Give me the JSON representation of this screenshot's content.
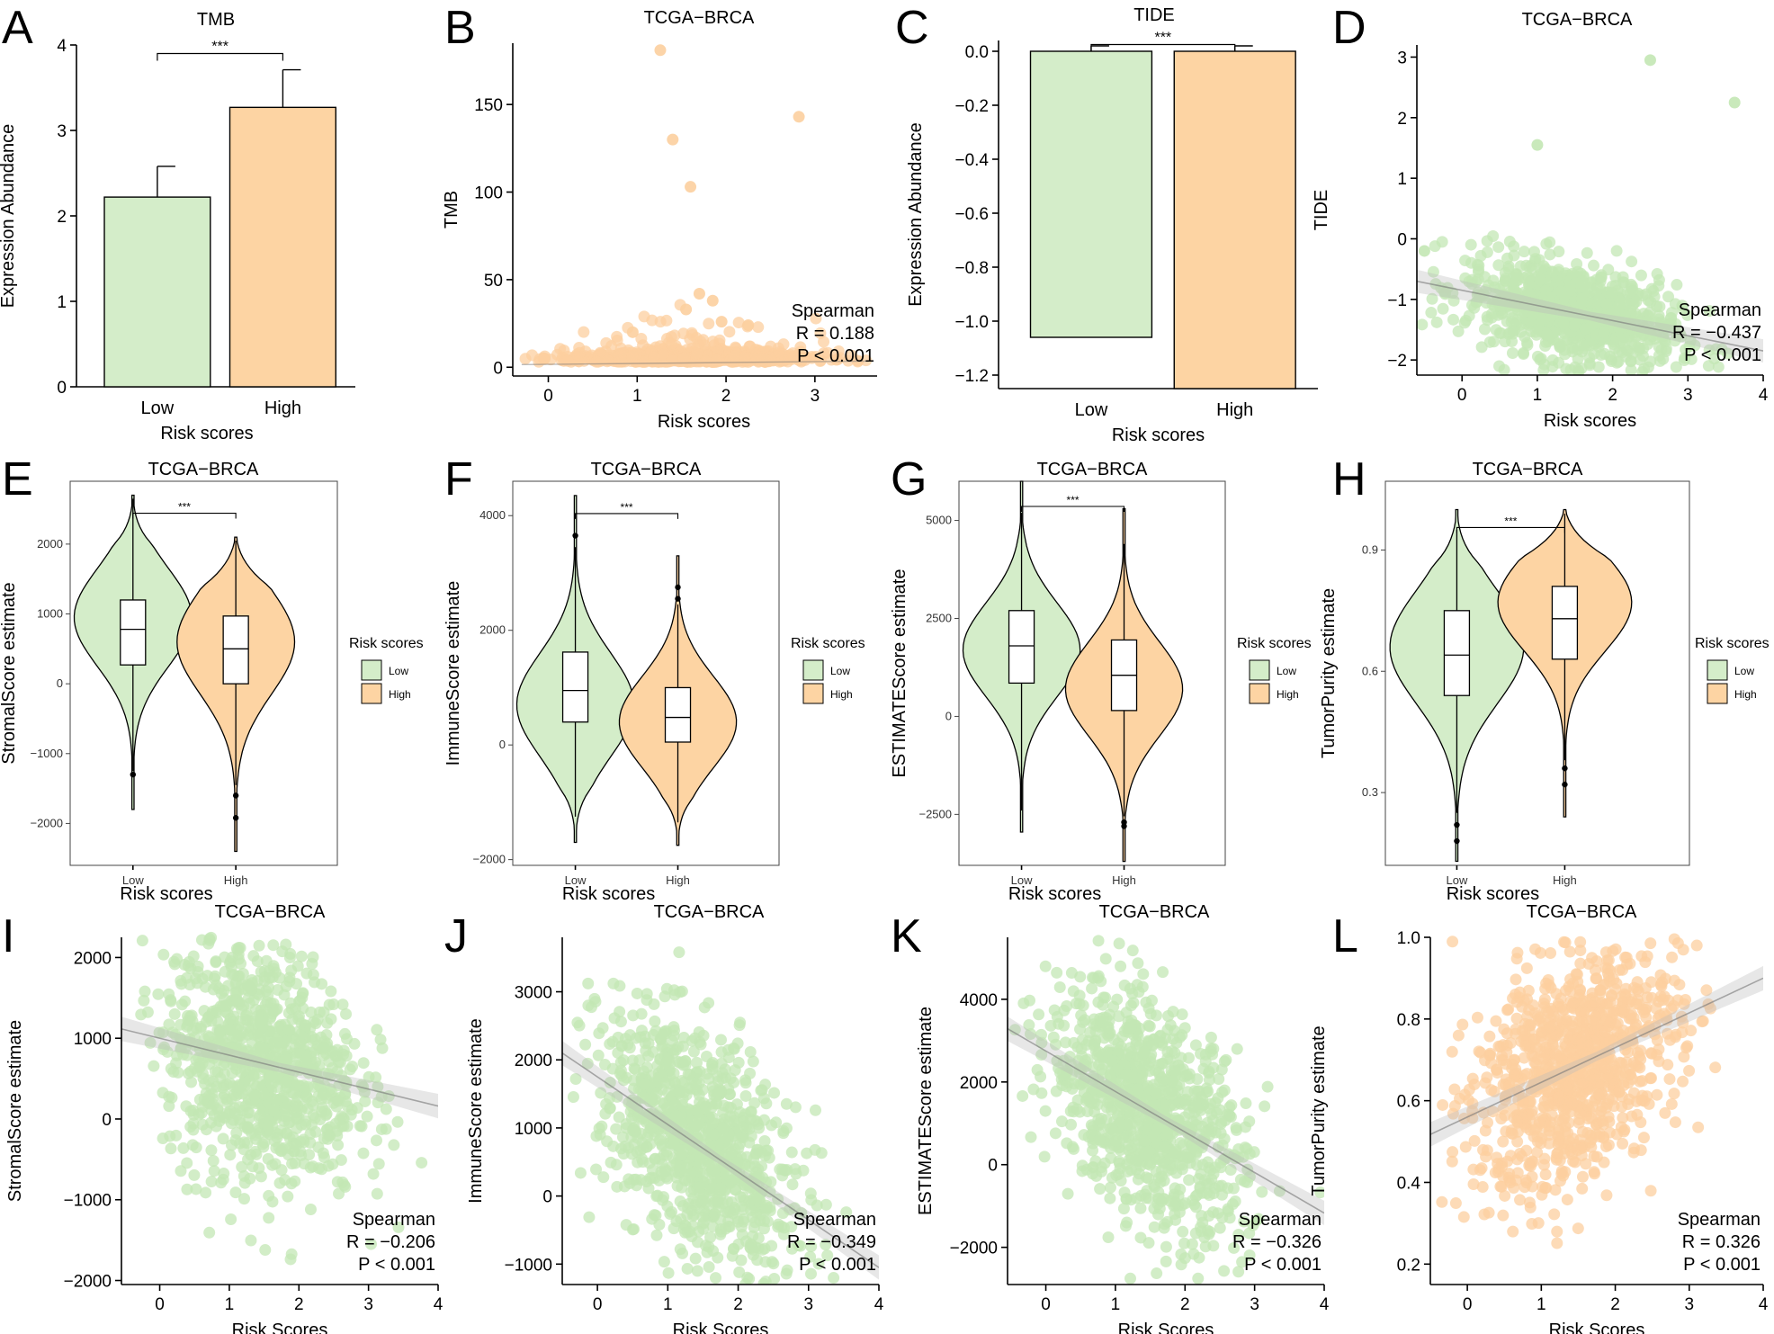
{
  "colors": {
    "low": "#d4edc9",
    "high": "#fdd4a3",
    "low_point": "#c3e7b4",
    "high_point": "#fccf9f",
    "line": "#777777",
    "band": "#bbbbbb"
  },
  "chart_data": [
    {
      "id": "A",
      "panel_label": "A",
      "type": "bar",
      "title": "TMB",
      "xlabel": "Risk scores",
      "ylabel": "Expression Abundance",
      "categories": [
        "Low",
        "High"
      ],
      "values": [
        2.22,
        3.27
      ],
      "errors": [
        0.36,
        0.44
      ],
      "ylim": [
        0,
        4
      ],
      "yticks": [
        0,
        1,
        2,
        3,
        4
      ],
      "yticklabels": [
        "0",
        "1",
        "2",
        "3",
        "4"
      ],
      "significance": "***"
    },
    {
      "id": "B",
      "panel_label": "B",
      "type": "scatter",
      "title": "TCGA−BRCA",
      "xlabel": "Risk scores",
      "ylabel": "TMB",
      "xlim": [
        -0.4,
        3.7
      ],
      "ylim": [
        -5,
        185
      ],
      "xticks": [
        0,
        1,
        2,
        3
      ],
      "xticklabels": [
        "0",
        "1",
        "2",
        "3"
      ],
      "yticks": [
        0,
        50,
        100,
        150
      ],
      "yticklabels": [
        "0",
        "50",
        "100",
        "150"
      ],
      "stats": {
        "method": "Spearman",
        "r_label": "R = 0.188",
        "p_label": "P < 0.001"
      },
      "highlight_points": [
        [
          1.26,
          181
        ],
        [
          2.82,
          143
        ],
        [
          1.4,
          130
        ],
        [
          1.6,
          103
        ],
        [
          1.7,
          42
        ],
        [
          1.85,
          38
        ],
        [
          1.55,
          33
        ],
        [
          1.95,
          26
        ],
        [
          2.25,
          24
        ],
        [
          0.95,
          20
        ]
      ],
      "cloud": {
        "n": 700,
        "x_mean": 1.5,
        "x_sd": 0.75,
        "y_base": 3,
        "y_spread": 8
      }
    },
    {
      "id": "C",
      "panel_label": "C",
      "type": "bar",
      "title": "TIDE",
      "xlabel": "Risk scores",
      "ylabel": "Expression Abundance",
      "categories": [
        "Low",
        "High"
      ],
      "values": [
        -1.06,
        -1.25
      ],
      "errors": [
        0.02,
        0.02
      ],
      "ylim": [
        -1.25,
        0.04
      ],
      "yticks": [
        0,
        -0.2,
        -0.4,
        -0.6,
        -0.8,
        -1.0,
        -1.2
      ],
      "yticklabels": [
        "0.0",
        "−0.2",
        "−0.4",
        "−0.6",
        "−0.8",
        "−1.0",
        "−1.2"
      ],
      "significance": "***"
    },
    {
      "id": "D",
      "panel_label": "D",
      "type": "scatter",
      "title": "TCGA−BRCA",
      "xlabel": "Risk scores",
      "ylabel": "TIDE",
      "xlim": [
        -0.6,
        4.0
      ],
      "ylim": [
        -2.25,
        3.2
      ],
      "xticks": [
        0,
        1,
        2,
        3,
        4
      ],
      "xticklabels": [
        "0",
        "1",
        "2",
        "3",
        "4"
      ],
      "yticks": [
        -2,
        -1,
        0,
        1,
        2,
        3
      ],
      "yticklabels": [
        "−2",
        "−1",
        "0",
        "1",
        "2",
        "3"
      ],
      "stats": {
        "method": "Spearman",
        "r_label": "R = −0.437",
        "p_label": "P < 0.001"
      },
      "regression": {
        "slope": -0.25,
        "intercept": -0.85
      },
      "highlight_points": [
        [
          2.5,
          2.95
        ],
        [
          3.62,
          2.25
        ],
        [
          1.0,
          1.55
        ],
        [
          -0.5,
          -0.2
        ]
      ],
      "cloud": {
        "n": 900,
        "x_mean": 1.45,
        "x_sd": 0.7,
        "y_sd": 0.4
      }
    },
    {
      "id": "E",
      "panel_label": "E",
      "type": "violin",
      "title": "TCGA−BRCA",
      "xlabel": "Risk scores",
      "ylabel": "StromalScore estimate",
      "categories": [
        "Low",
        "High"
      ],
      "ylim": [
        -2600,
        2900
      ],
      "yticks": [
        -2000,
        -1000,
        0,
        1000,
        2000
      ],
      "yticklabels": [
        "−2000",
        "−1000",
        "0",
        "1000",
        "2000"
      ],
      "significance": "***",
      "legend_title": "Risk scores",
      "groups": [
        {
          "min": -1800,
          "max": 2700,
          "q1": 270,
          "median": 780,
          "q3": 1200,
          "wlo": -1250,
          "whi": 2650,
          "mode": 950,
          "sd": 700,
          "outliers": [
            -1300
          ]
        },
        {
          "min": -2400,
          "max": 2100,
          "q1": 0,
          "median": 500,
          "q3": 970,
          "wlo": -1450,
          "whi": 2050,
          "mode": 600,
          "sd": 750,
          "outliers": [
            -1600,
            -1920
          ]
        }
      ]
    },
    {
      "id": "F",
      "panel_label": "F",
      "type": "violin",
      "title": "TCGA−BRCA",
      "xlabel": "Risk scores",
      "ylabel": "ImmuneScore estimate",
      "categories": [
        "Low",
        "High"
      ],
      "ylim": [
        -2100,
        4600
      ],
      "yticks": [
        -2000,
        0,
        2000,
        4000
      ],
      "yticklabels": [
        "−2000",
        "0",
        "2000",
        "4000"
      ],
      "significance": "***",
      "legend_title": "Risk scores",
      "groups": [
        {
          "min": -1700,
          "max": 4350,
          "q1": 400,
          "median": 950,
          "q3": 1620,
          "wlo": -1250,
          "whi": 3450,
          "mode": 700,
          "sd": 900,
          "outliers": [
            3650
          ]
        },
        {
          "min": -1750,
          "max": 3300,
          "q1": 50,
          "median": 480,
          "q3": 1000,
          "wlo": -1350,
          "whi": 2450,
          "mode": 400,
          "sd": 800,
          "outliers": [
            2550,
            2750
          ]
        }
      ]
    },
    {
      "id": "G",
      "panel_label": "G",
      "type": "violin",
      "title": "TCGA−BRCA",
      "xlabel": "Risk scores",
      "ylabel": "ESTIMATEScore estimate",
      "categories": [
        "Low",
        "High"
      ],
      "ylim": [
        -3800,
        6000
      ],
      "yticks": [
        -2500,
        0,
        2500,
        5000
      ],
      "yticklabels": [
        "−2500",
        "0",
        "2500",
        "5000"
      ],
      "significance": "***",
      "legend_title": "Risk scores",
      "groups": [
        {
          "min": -2950,
          "max": 6000,
          "q1": 850,
          "median": 1800,
          "q3": 2700,
          "wlo": -2400,
          "whi": 5200,
          "mode": 1700,
          "sd": 1200,
          "outliers": []
        },
        {
          "min": -3700,
          "max": 5300,
          "q1": 150,
          "median": 1050,
          "q3": 1950,
          "wlo": -2550,
          "whi": 4400,
          "mode": 700,
          "sd": 1200,
          "outliers": [
            -2700,
            -2800
          ]
        }
      ]
    },
    {
      "id": "H",
      "panel_label": "H",
      "type": "violin",
      "title": "TCGA−BRCA",
      "xlabel": "Risk scores",
      "ylabel": "TumorPurity estimate",
      "categories": [
        "Low",
        "High"
      ],
      "ylim": [
        0.12,
        1.07
      ],
      "yticks": [
        0.3,
        0.6,
        0.9
      ],
      "yticklabels": [
        "0.3",
        "0.6",
        "0.9"
      ],
      "significance": "***",
      "legend_title": "Risk scores",
      "groups": [
        {
          "min": 0.13,
          "max": 1.0,
          "q1": 0.54,
          "median": 0.64,
          "q3": 0.75,
          "wlo": 0.25,
          "whi": 0.95,
          "mode": 0.66,
          "sd": 0.14,
          "outliers": [
            0.22,
            0.18
          ]
        },
        {
          "min": 0.24,
          "max": 1.0,
          "q1": 0.63,
          "median": 0.73,
          "q3": 0.81,
          "wlo": 0.38,
          "whi": 0.99,
          "mode": 0.77,
          "sd": 0.12,
          "outliers": [
            0.36,
            0.32
          ]
        }
      ]
    },
    {
      "id": "I",
      "panel_label": "I",
      "type": "scatter",
      "title": "TCGA−BRCA",
      "xlabel": "Risk Scores",
      "ylabel": "StromalScore estimate",
      "xlim": [
        -0.55,
        4.0
      ],
      "ylim": [
        -2050,
        2250
      ],
      "xticks": [
        0,
        1,
        2,
        3,
        4
      ],
      "xticklabels": [
        "0",
        "1",
        "2",
        "3",
        "4"
      ],
      "yticks": [
        -2000,
        -1000,
        0,
        1000,
        2000
      ],
      "yticklabels": [
        "−2000",
        "−1000",
        "0",
        "1000",
        "2000"
      ],
      "stats": {
        "method": "Spearman",
        "r_label": "R = −0.206",
        "p_label": "P < 0.001"
      },
      "regression": {
        "slope": -210,
        "intercept": 1000
      },
      "point_color": "low_point",
      "cloud": {
        "n": 1000,
        "x_mean": 1.45,
        "x_sd": 0.7,
        "y_sd": 750
      }
    },
    {
      "id": "J",
      "panel_label": "J",
      "type": "scatter",
      "title": "TCGA−BRCA",
      "xlabel": "Risk Scores",
      "ylabel": "ImmuneScore estimate",
      "xlim": [
        -0.5,
        4.0
      ],
      "ylim": [
        -1300,
        3800
      ],
      "xticks": [
        0,
        1,
        2,
        3,
        4
      ],
      "xticklabels": [
        "0",
        "1",
        "2",
        "3",
        "4"
      ],
      "yticks": [
        -1000,
        0,
        1000,
        2000,
        3000
      ],
      "yticklabels": [
        "−1000",
        "0",
        "1000",
        "2000",
        "3000"
      ],
      "stats": {
        "method": "Spearman",
        "r_label": "R = −0.349",
        "p_label": "P < 0.001"
      },
      "regression": {
        "slope": -700,
        "intercept": 1750
      },
      "point_color": "low_point",
      "cloud": {
        "n": 1000,
        "x_mean": 1.45,
        "x_sd": 0.7,
        "y_sd": 800
      }
    },
    {
      "id": "K",
      "panel_label": "K",
      "type": "scatter",
      "title": "TCGA−BRCA",
      "xlabel": "Risk Scores",
      "ylabel": "ESTIMATEScore estimate",
      "xlim": [
        -0.55,
        4.0
      ],
      "ylim": [
        -2900,
        5500
      ],
      "xticks": [
        0,
        1,
        2,
        3,
        4
      ],
      "xticklabels": [
        "0",
        "1",
        "2",
        "3",
        "4"
      ],
      "yticks": [
        -2000,
        0,
        2000,
        4000
      ],
      "yticklabels": [
        "−2000",
        "0",
        "2000",
        "4000"
      ],
      "stats": {
        "method": "Spearman",
        "r_label": "R = −0.326",
        "p_label": "P < 0.001"
      },
      "regression": {
        "slope": -980,
        "intercept": 2750
      },
      "point_color": "low_point",
      "cloud": {
        "n": 1000,
        "x_mean": 1.45,
        "x_sd": 0.7,
        "y_sd": 1300
      }
    },
    {
      "id": "L",
      "panel_label": "L",
      "type": "scatter",
      "title": "TCGA−BRCA",
      "xlabel": "Risk Scores",
      "ylabel": "TumorPurity estimate",
      "xlim": [
        -0.5,
        4.0
      ],
      "ylim": [
        0.15,
        1.0
      ],
      "xticks": [
        0,
        1,
        2,
        3,
        4
      ],
      "xticklabels": [
        "0",
        "1",
        "2",
        "3",
        "4"
      ],
      "yticks": [
        0.2,
        0.4,
        0.6,
        0.8,
        1.0
      ],
      "yticklabels": [
        "0.2",
        "0.4",
        "0.6",
        "0.8",
        "1.0"
      ],
      "stats": {
        "method": "Spearman",
        "r_label": "R = 0.326",
        "p_label": "P < 0.001"
      },
      "regression": {
        "slope": 0.085,
        "intercept": 0.56
      },
      "point_color": "high_point",
      "cloud": {
        "n": 1000,
        "x_mean": 1.45,
        "x_sd": 0.7,
        "y_sd": 0.14
      }
    }
  ],
  "legend": {
    "title": "Risk scores",
    "items": [
      "Low",
      "High"
    ]
  }
}
